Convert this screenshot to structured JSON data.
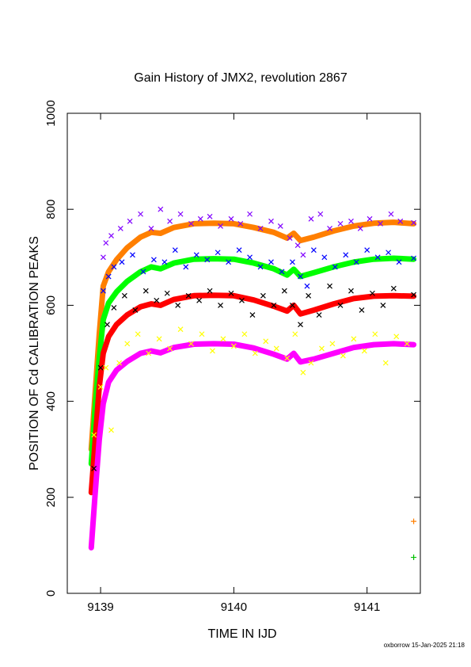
{
  "chart_data": {
    "type": "scatter",
    "title": "Gain History of JMX2, revolution 2867",
    "xlabel": "TIME IN IJD",
    "ylabel": "POSITION OF Cd CALIBRATION PEAKS",
    "footer": "oxborrow 15-Jan-2025 21:18",
    "xlim": [
      9138.75,
      9141.4
    ],
    "ylim": [
      0,
      1000
    ],
    "xticks": [
      9139,
      9140,
      9141
    ],
    "xtick_labels": [
      "9139",
      "9140",
      "9141"
    ],
    "yticks": [
      0,
      200,
      400,
      600,
      800,
      1000
    ],
    "ytick_labels": [
      "0",
      "200",
      "400",
      "600",
      "800",
      "1000"
    ],
    "grid": false,
    "legend": "none",
    "series": [
      {
        "color": "#ff7f00",
        "role": "fit",
        "x": [
          9138.93,
          9138.96,
          9138.99,
          9139.02,
          9139.06,
          9139.12,
          9139.2,
          9139.3,
          9139.38,
          9139.45,
          9139.55,
          9139.7,
          9139.85,
          9140.0,
          9140.15,
          9140.3,
          9140.4,
          9140.45,
          9140.5,
          9140.6,
          9140.75,
          9140.9,
          9141.05,
          9141.2,
          9141.35
        ],
        "y": [
          300,
          420,
          540,
          640,
          670,
          695,
          720,
          742,
          752,
          750,
          762,
          770,
          771,
          770,
          762,
          752,
          740,
          750,
          735,
          742,
          755,
          765,
          771,
          773,
          770
        ]
      },
      {
        "color": "#00ff00",
        "role": "fit",
        "x": [
          9138.93,
          9138.96,
          9138.99,
          9139.02,
          9139.06,
          9139.12,
          9139.2,
          9139.3,
          9139.38,
          9139.45,
          9139.55,
          9139.7,
          9139.85,
          9140.0,
          9140.15,
          9140.3,
          9140.4,
          9140.45,
          9140.5,
          9140.6,
          9140.75,
          9140.9,
          9141.05,
          9141.2,
          9141.35
        ],
        "y": [
          270,
          390,
          490,
          570,
          605,
          628,
          650,
          670,
          680,
          676,
          688,
          696,
          697,
          696,
          688,
          676,
          663,
          675,
          660,
          668,
          680,
          690,
          696,
          698,
          696
        ]
      },
      {
        "color": "#ff0000",
        "role": "fit",
        "x": [
          9138.93,
          9138.96,
          9138.99,
          9139.02,
          9139.06,
          9139.12,
          9139.2,
          9139.3,
          9139.38,
          9139.45,
          9139.55,
          9139.7,
          9139.85,
          9140.0,
          9140.15,
          9140.3,
          9140.4,
          9140.45,
          9140.5,
          9140.6,
          9140.75,
          9140.9,
          9141.05,
          9141.2,
          9141.35
        ],
        "y": [
          210,
          320,
          430,
          500,
          535,
          560,
          580,
          597,
          603,
          600,
          612,
          620,
          621,
          620,
          611,
          598,
          588,
          600,
          582,
          590,
          603,
          614,
          619,
          620,
          619
        ]
      },
      {
        "color": "#ff00ff",
        "role": "fit",
        "x": [
          9138.93,
          9138.96,
          9138.99,
          9139.02,
          9139.06,
          9139.12,
          9139.2,
          9139.3,
          9139.38,
          9139.45,
          9139.55,
          9139.7,
          9139.85,
          9140.0,
          9140.15,
          9140.3,
          9140.4,
          9140.45,
          9140.5,
          9140.6,
          9140.75,
          9140.9,
          9141.05,
          9141.2,
          9141.35
        ],
        "y": [
          95,
          210,
          320,
          395,
          440,
          465,
          483,
          500,
          505,
          501,
          512,
          519,
          520,
          519,
          511,
          498,
          488,
          500,
          482,
          488,
          500,
          512,
          518,
          520,
          518
        ]
      },
      {
        "color": "#8000ff",
        "role": "scatter",
        "x": [
          9139.02,
          9139.04,
          9139.08,
          9139.15,
          9139.22,
          9139.3,
          9139.38,
          9139.45,
          9139.52,
          9139.6,
          9139.68,
          9139.75,
          9139.82,
          9139.9,
          9139.98,
          9140.05,
          9140.12,
          9140.2,
          9140.28,
          9140.35,
          9140.42,
          9140.48,
          9140.52,
          9140.58,
          9140.65,
          9140.72,
          9140.8,
          9140.88,
          9140.95,
          9141.02,
          9141.1,
          9141.18,
          9141.25,
          9141.35
        ],
        "y": [
          700,
          730,
          745,
          760,
          775,
          790,
          760,
          800,
          775,
          790,
          770,
          780,
          785,
          765,
          780,
          770,
          790,
          760,
          775,
          765,
          740,
          725,
          705,
          780,
          790,
          760,
          770,
          775,
          760,
          780,
          770,
          790,
          775,
          772
        ]
      },
      {
        "color": "#0000ff",
        "role": "scatter",
        "x": [
          9139.02,
          9139.06,
          9139.1,
          9139.16,
          9139.24,
          9139.32,
          9139.4,
          9139.48,
          9139.56,
          9139.64,
          9139.72,
          9139.8,
          9139.88,
          9139.96,
          9140.04,
          9140.12,
          9140.2,
          9140.28,
          9140.36,
          9140.44,
          9140.5,
          9140.55,
          9140.6,
          9140.68,
          9140.76,
          9140.84,
          9140.92,
          9141.0,
          9141.08,
          9141.16,
          9141.24,
          9141.35
        ],
        "y": [
          630,
          660,
          680,
          690,
          705,
          670,
          695,
          690,
          715,
          680,
          705,
          695,
          710,
          690,
          715,
          700,
          680,
          690,
          670,
          690,
          660,
          640,
          715,
          700,
          680,
          705,
          690,
          715,
          700,
          710,
          690,
          698
        ]
      },
      {
        "color": "#000000",
        "role": "scatter",
        "x": [
          9138.95,
          9139.0,
          9139.05,
          9139.1,
          9139.18,
          9139.26,
          9139.34,
          9139.42,
          9139.5,
          9139.58,
          9139.66,
          9139.74,
          9139.82,
          9139.9,
          9139.98,
          9140.06,
          9140.14,
          9140.22,
          9140.3,
          9140.38,
          9140.44,
          9140.5,
          9140.56,
          9140.64,
          9140.72,
          9140.8,
          9140.88,
          9140.96,
          9141.04,
          9141.12,
          9141.2,
          9141.35
        ],
        "y": [
          260,
          470,
          560,
          595,
          620,
          590,
          630,
          610,
          625,
          600,
          620,
          610,
          630,
          600,
          625,
          610,
          580,
          620,
          600,
          630,
          600,
          560,
          620,
          580,
          640,
          600,
          630,
          590,
          625,
          600,
          635,
          622
        ]
      },
      {
        "color": "#ffff00",
        "role": "scatter",
        "x": [
          9138.95,
          9139.0,
          9139.04,
          9139.08,
          9139.14,
          9139.2,
          9139.28,
          9139.36,
          9139.44,
          9139.52,
          9139.6,
          9139.68,
          9139.76,
          9139.84,
          9139.92,
          9140.0,
          9140.08,
          9140.16,
          9140.24,
          9140.32,
          9140.4,
          9140.46,
          9140.52,
          9140.58,
          9140.66,
          9140.74,
          9140.82,
          9140.9,
          9140.98,
          9141.06,
          9141.14,
          9141.22,
          9141.3
        ],
        "y": [
          330,
          430,
          470,
          340,
          480,
          520,
          540,
          500,
          530,
          510,
          550,
          520,
          540,
          505,
          530,
          515,
          540,
          500,
          525,
          510,
          490,
          540,
          460,
          480,
          510,
          520,
          495,
          530,
          505,
          540,
          480,
          535,
          520
        ]
      },
      {
        "color": "#ff7f00",
        "role": "marker",
        "x": [
          9141.35
        ],
        "y": [
          150
        ]
      },
      {
        "color": "#00c000",
        "role": "marker",
        "x": [
          9141.35
        ],
        "y": [
          75
        ]
      }
    ]
  }
}
